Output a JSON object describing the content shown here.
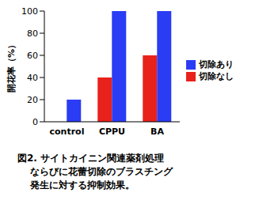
{
  "chart_data": {
    "type": "bar",
    "categories": [
      "control",
      "CPPU",
      "BA"
    ],
    "series": [
      {
        "name": "切除なし",
        "color": "#e8211b",
        "values": [
          0,
          40,
          60
        ]
      },
      {
        "name": "切除あり",
        "color": "#2b3cf5",
        "values": [
          20,
          100,
          100
        ]
      }
    ],
    "ylabel": "開花率（%）",
    "ylim": [
      0,
      100
    ],
    "yticks": [
      0,
      20,
      40,
      60,
      80,
      100
    ],
    "legend": "right",
    "caption": [
      "図2.  サイトカイニン関連薬剤処理",
      "ならびに花蕾切除のブラスチング",
      "発生に対する抑制効果。"
    ]
  }
}
